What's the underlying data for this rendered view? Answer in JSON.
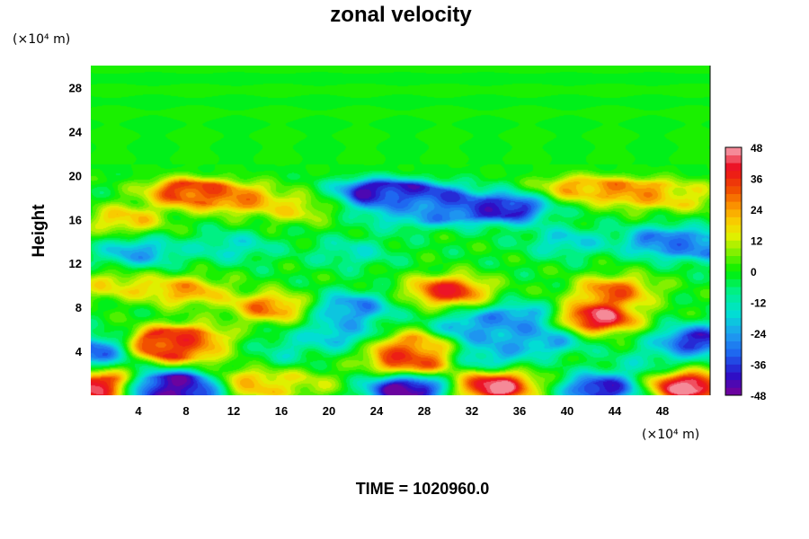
{
  "chart_data": {
    "type": "heatmap",
    "title": "zonal velocity",
    "xlabel": "",
    "ylabel": "Height",
    "x_unit": "(×10⁴ m)",
    "y_unit": "(×10⁴ m)",
    "footer": "TIME = 1020960.0",
    "xlim": [
      0,
      52
    ],
    "ylim": [
      0,
      30
    ],
    "x_ticks": [
      "4",
      "8",
      "12",
      "16",
      "20",
      "24",
      "28",
      "32",
      "36",
      "40",
      "44",
      "48"
    ],
    "y_ticks": [
      "4",
      "8",
      "12",
      "16",
      "20",
      "24",
      "28"
    ],
    "colorbar": {
      "range": [
        -48,
        48
      ],
      "ticks": [
        "48",
        "36",
        "24",
        "12",
        "0",
        "-12",
        "-24",
        "-36",
        "-48"
      ]
    },
    "color_scale": [
      {
        "v": -48,
        "c": "#7a0096"
      },
      {
        "v": -40,
        "c": "#2a0fc8"
      },
      {
        "v": -32,
        "c": "#1e64f0"
      },
      {
        "v": -24,
        "c": "#1ea0f0"
      },
      {
        "v": -16,
        "c": "#00e1d2"
      },
      {
        "v": -8,
        "c": "#00f08c"
      },
      {
        "v": 0,
        "c": "#00f000"
      },
      {
        "v": 8,
        "c": "#8cf000"
      },
      {
        "v": 14,
        "c": "#e6f000"
      },
      {
        "v": 20,
        "c": "#fac800"
      },
      {
        "v": 26,
        "c": "#fa8c00"
      },
      {
        "v": 32,
        "c": "#f04b00"
      },
      {
        "v": 40,
        "c": "#eb0a1e"
      },
      {
        "v": 48,
        "c": "#f7a8b4"
      }
    ],
    "field": {
      "background": -1,
      "features": [
        {
          "x": 3,
          "y": 16,
          "v": 18
        },
        {
          "x": 8,
          "y": 18.6,
          "v": 34
        },
        {
          "x": 12,
          "y": 18,
          "v": 26
        },
        {
          "x": 17,
          "y": 17,
          "v": 14
        },
        {
          "x": 41,
          "y": 19,
          "v": 22
        },
        {
          "x": 46,
          "y": 18.5,
          "v": 26
        },
        {
          "x": 50,
          "y": 18,
          "v": 12
        },
        {
          "x": 24,
          "y": 18.5,
          "v": -42
        },
        {
          "x": 28,
          "y": 18,
          "v": -36
        },
        {
          "x": 30,
          "y": 17,
          "v": -30
        },
        {
          "x": 35,
          "y": 17,
          "v": -40
        },
        {
          "x": 26,
          "y": 16.5,
          "v": -14
        },
        {
          "x": 4,
          "y": 13,
          "v": -22
        },
        {
          "x": 12,
          "y": 13.5,
          "v": -14
        },
        {
          "x": 22,
          "y": 13,
          "v": -12
        },
        {
          "x": 40,
          "y": 14,
          "v": -16
        },
        {
          "x": 48,
          "y": 14,
          "v": -28
        },
        {
          "x": 52,
          "y": 13.5,
          "v": -26
        },
        {
          "x": 2,
          "y": 10,
          "v": 14
        },
        {
          "x": 8,
          "y": 9.5,
          "v": 22
        },
        {
          "x": 15,
          "y": 8,
          "v": 26
        },
        {
          "x": 30,
          "y": 9.5,
          "v": 36
        },
        {
          "x": 36,
          "y": 7,
          "v": -26
        },
        {
          "x": 32,
          "y": 6,
          "v": -24
        },
        {
          "x": 38,
          "y": 5,
          "v": -22
        },
        {
          "x": 33,
          "y": 3.5,
          "v": -20
        },
        {
          "x": 22,
          "y": 8,
          "v": -26
        },
        {
          "x": 21,
          "y": 5.5,
          "v": -20
        },
        {
          "x": 0,
          "y": 4,
          "v": -32
        },
        {
          "x": 7,
          "y": 4.5,
          "v": 42
        },
        {
          "x": 7.5,
          "y": 5,
          "v": 30
        },
        {
          "x": 12,
          "y": 4,
          "v": 8
        },
        {
          "x": 15,
          "y": 4,
          "v": -14
        },
        {
          "x": 27,
          "y": 3.2,
          "v": 38
        },
        {
          "x": 27,
          "y": 4.5,
          "v": 26
        },
        {
          "x": 42.5,
          "y": 7,
          "v": 44
        },
        {
          "x": 44,
          "y": 9.5,
          "v": 28
        },
        {
          "x": 51,
          "y": 5,
          "v": -38
        },
        {
          "x": 47,
          "y": 3,
          "v": -10
        },
        {
          "x": 1,
          "y": 0.8,
          "v": 46
        },
        {
          "x": 6,
          "y": 0.5,
          "v": -48
        },
        {
          "x": 8,
          "y": 0.6,
          "v": -46
        },
        {
          "x": 13,
          "y": 1,
          "v": 24
        },
        {
          "x": 18,
          "y": 1,
          "v": 10
        },
        {
          "x": 26.5,
          "y": 0.5,
          "v": -48
        },
        {
          "x": 34,
          "y": 0.8,
          "v": 46
        },
        {
          "x": 43,
          "y": 0.6,
          "v": -40
        },
        {
          "x": 50,
          "y": 0.8,
          "v": 48
        }
      ]
    }
  }
}
